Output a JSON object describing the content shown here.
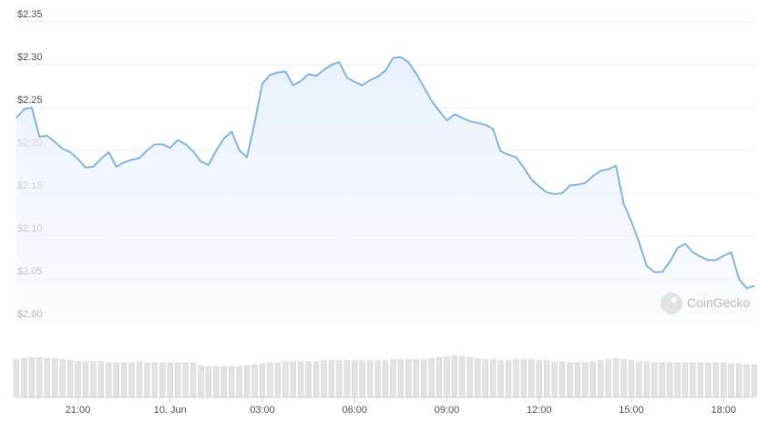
{
  "chart_data": {
    "type": "line",
    "categories": [
      null,
      null,
      null,
      null,
      null,
      null,
      null,
      null,
      "21:00",
      null,
      null,
      null,
      null,
      null,
      null,
      null,
      null,
      null,
      null,
      null,
      "10. Jun",
      null,
      null,
      null,
      null,
      null,
      null,
      null,
      null,
      null,
      null,
      null,
      "03:00",
      null,
      null,
      null,
      null,
      null,
      null,
      null,
      null,
      null,
      null,
      null,
      "06:00",
      null,
      null,
      null,
      null,
      null,
      null,
      null,
      null,
      null,
      null,
      null,
      "09:00",
      null,
      null,
      null,
      null,
      null,
      null,
      null,
      null,
      null,
      null,
      null,
      "12:00",
      null,
      null,
      null,
      null,
      null,
      null,
      null,
      null,
      null,
      null,
      null,
      "15:00",
      null,
      null,
      null,
      null,
      null,
      null,
      null,
      null,
      null,
      null,
      null,
      "18:00",
      null,
      null,
      null,
      null
    ],
    "values": [
      2.238,
      2.248,
      2.25,
      2.216,
      2.217,
      2.21,
      2.202,
      2.198,
      2.19,
      2.18,
      2.181,
      2.19,
      2.198,
      2.181,
      2.186,
      2.189,
      2.191,
      2.2,
      2.207,
      2.207,
      2.203,
      2.212,
      2.207,
      2.199,
      2.187,
      2.183,
      2.2,
      2.214,
      2.222,
      2.2,
      2.192,
      2.233,
      2.278,
      2.288,
      2.291,
      2.292,
      2.276,
      2.281,
      2.289,
      2.287,
      2.294,
      2.3,
      2.303,
      2.285,
      2.28,
      2.276,
      2.282,
      2.286,
      2.293,
      2.308,
      2.309,
      2.303,
      2.29,
      2.274,
      2.258,
      2.246,
      2.235,
      2.242,
      2.238,
      2.234,
      2.232,
      2.23,
      2.225,
      2.199,
      2.195,
      2.192,
      2.18,
      2.166,
      2.158,
      2.151,
      2.149,
      2.15,
      2.159,
      2.16,
      2.162,
      2.17,
      2.176,
      2.178,
      2.182,
      2.138,
      2.117,
      2.093,
      2.065,
      2.058,
      2.058,
      2.07,
      2.086,
      2.091,
      2.081,
      2.076,
      2.072,
      2.072,
      2.077,
      2.081,
      2.05,
      2.039,
      2.042
    ],
    "color": "#86b6e2",
    "volume": [
      36,
      37,
      38,
      38,
      37,
      37,
      36,
      35,
      34,
      34,
      34,
      34,
      33,
      33,
      33,
      33,
      34,
      33,
      33,
      33,
      33,
      33,
      33,
      33,
      30,
      29,
      29,
      29,
      29,
      29,
      30,
      31,
      32,
      33,
      33,
      34,
      34,
      34,
      34,
      34,
      35,
      35,
      35,
      35,
      35,
      35,
      35,
      35,
      35,
      36,
      36,
      36,
      36,
      36,
      37,
      38,
      39,
      40,
      39,
      38,
      37,
      36,
      36,
      35,
      35,
      36,
      36,
      36,
      35,
      35,
      34,
      34,
      33,
      33,
      33,
      34,
      35,
      36,
      37,
      36,
      35,
      34,
      34,
      33,
      33,
      33,
      33,
      33,
      33,
      33,
      33,
      33,
      33,
      32,
      32,
      31,
      31
    ],
    "volume_color": "#e3e3e3",
    "ylim": [
      2.0,
      2.35
    ],
    "yticks": [
      {
        "value": 2.0,
        "label": "$2.00"
      },
      {
        "value": 2.05,
        "label": "$2.05"
      },
      {
        "value": 2.1,
        "label": "$2.10"
      },
      {
        "value": 2.15,
        "label": "$2.15"
      },
      {
        "value": 2.2,
        "label": "$2.20"
      },
      {
        "value": 2.25,
        "label": "$2.25"
      },
      {
        "value": 2.3,
        "label": "$2.30"
      },
      {
        "value": 2.35,
        "label": "$2.35"
      }
    ],
    "grid": true,
    "watermark": "CoinGecko"
  }
}
